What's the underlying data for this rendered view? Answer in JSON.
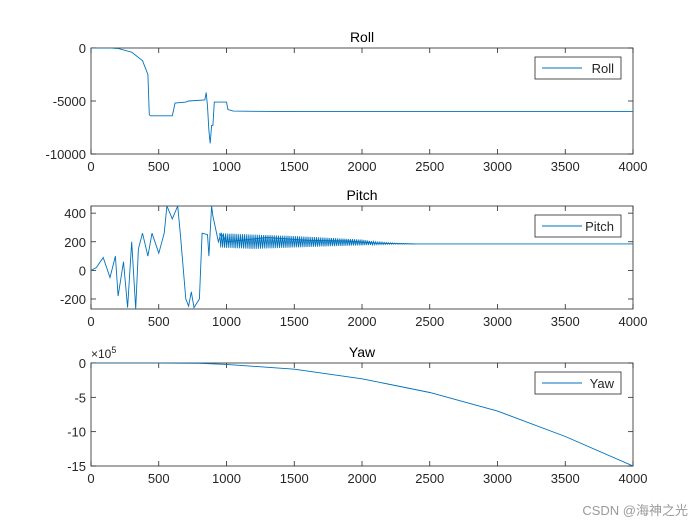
{
  "watermark": "CSDN @海神之光",
  "colors": {
    "line": "#0072BD",
    "axis": "#262626",
    "tick_text": "#262626",
    "title": "#000000",
    "background": "#ffffff",
    "legend_border": "#262626"
  },
  "chart_data": [
    {
      "type": "line",
      "title": "Roll",
      "xlabel": "",
      "ylabel": "",
      "xlim": [
        0,
        4000
      ],
      "ylim": [
        -10000,
        0
      ],
      "xticks": [
        0,
        500,
        1000,
        1500,
        2000,
        2500,
        3000,
        3500,
        4000
      ],
      "xtick_labels": [
        "0",
        "500",
        "1000",
        "1500",
        "2000",
        "2500",
        "3000",
        "3500",
        "4000"
      ],
      "yticks": [
        -10000,
        -5000,
        0
      ],
      "ytick_labels": [
        "-10000",
        "-5000",
        "0"
      ],
      "legend": {
        "entries": [
          "Roll"
        ],
        "location": "top-right"
      },
      "series": [
        {
          "name": "Roll",
          "x": [
            0,
            150,
            200,
            300,
            380,
            420,
            430,
            440,
            600,
            610,
            620,
            700,
            720,
            840,
            850,
            860,
            870,
            880,
            890,
            900,
            910,
            1000,
            1010,
            1050,
            1500,
            2000,
            2500,
            3000,
            3500,
            4000
          ],
          "y": [
            0,
            0,
            -50,
            -400,
            -1200,
            -2500,
            -6300,
            -6400,
            -6400,
            -5800,
            -5200,
            -5100,
            -5000,
            -4900,
            -4200,
            -5500,
            -7800,
            -9000,
            -7300,
            -7300,
            -5100,
            -5100,
            -5800,
            -5950,
            -6000,
            -6000,
            -6000,
            -6000,
            -6000,
            -6000
          ]
        }
      ]
    },
    {
      "type": "line",
      "title": "Pitch",
      "xlabel": "",
      "ylabel": "",
      "xlim": [
        0,
        4000
      ],
      "ylim": [
        -270,
        450
      ],
      "xticks": [
        0,
        500,
        1000,
        1500,
        2000,
        2500,
        3000,
        3500,
        4000
      ],
      "xtick_labels": [
        "0",
        "500",
        "1000",
        "1500",
        "2000",
        "2500",
        "3000",
        "3500",
        "4000"
      ],
      "yticks": [
        -200,
        0,
        200,
        400
      ],
      "ytick_labels": [
        "-200",
        "0",
        "200",
        "400"
      ],
      "legend": {
        "entries": [
          "Pitch"
        ],
        "location": "top-right"
      },
      "series": [
        {
          "name": "Pitch",
          "x": [
            0,
            40,
            90,
            140,
            180,
            200,
            240,
            270,
            300,
            330,
            350,
            380,
            420,
            450,
            500,
            540,
            560,
            600,
            640,
            660,
            700,
            720,
            740,
            760,
            800,
            820,
            860,
            870,
            890,
            900,
            940,
            960,
            1000,
            1300,
            1600,
            1900,
            2100,
            2400,
            2800,
            3500,
            4000
          ],
          "y": [
            0,
            20,
            90,
            -50,
            100,
            -180,
            60,
            -260,
            200,
            -270,
            150,
            260,
            100,
            260,
            120,
            260,
            450,
            360,
            450,
            250,
            -200,
            -250,
            -150,
            -260,
            -200,
            260,
            250,
            100,
            450,
            380,
            200,
            260,
            200,
            230,
            210,
            205,
            190,
            185,
            185,
            185,
            185
          ],
          "band": {
            "x": [
              950,
              1200,
              1500,
              1800,
              2000,
              2100,
              2250,
              2400
            ],
            "min": [
              160,
              150,
              160,
              170,
              175,
              180,
              183,
              185
            ],
            "max": [
              260,
              250,
              240,
              225,
              215,
              200,
              190,
              185
            ]
          }
        }
      ]
    },
    {
      "type": "line",
      "title": "Yaw",
      "xlabel": "",
      "ylabel": "",
      "exponent_label": "×10",
      "exponent": "5",
      "xlim": [
        0,
        4000
      ],
      "ylim": [
        -15,
        0
      ],
      "xticks": [
        0,
        500,
        1000,
        1500,
        2000,
        2500,
        3000,
        3500,
        4000
      ],
      "xtick_labels": [
        "0",
        "500",
        "1000",
        "1500",
        "2000",
        "2500",
        "3000",
        "3500",
        "4000"
      ],
      "yticks": [
        -15,
        -10,
        -5,
        0
      ],
      "ytick_labels": [
        "-15",
        "-10",
        "-5",
        "0"
      ],
      "legend": {
        "entries": [
          "Yaw"
        ],
        "location": "top-right"
      },
      "series": [
        {
          "name": "Yaw",
          "x": [
            0,
            500,
            800,
            1000,
            1500,
            2000,
            2500,
            3000,
            3500,
            4000
          ],
          "y": [
            0,
            0,
            -0.05,
            -0.2,
            -0.9,
            -2.3,
            -4.3,
            -7.0,
            -10.7,
            -15.0
          ]
        }
      ]
    }
  ]
}
